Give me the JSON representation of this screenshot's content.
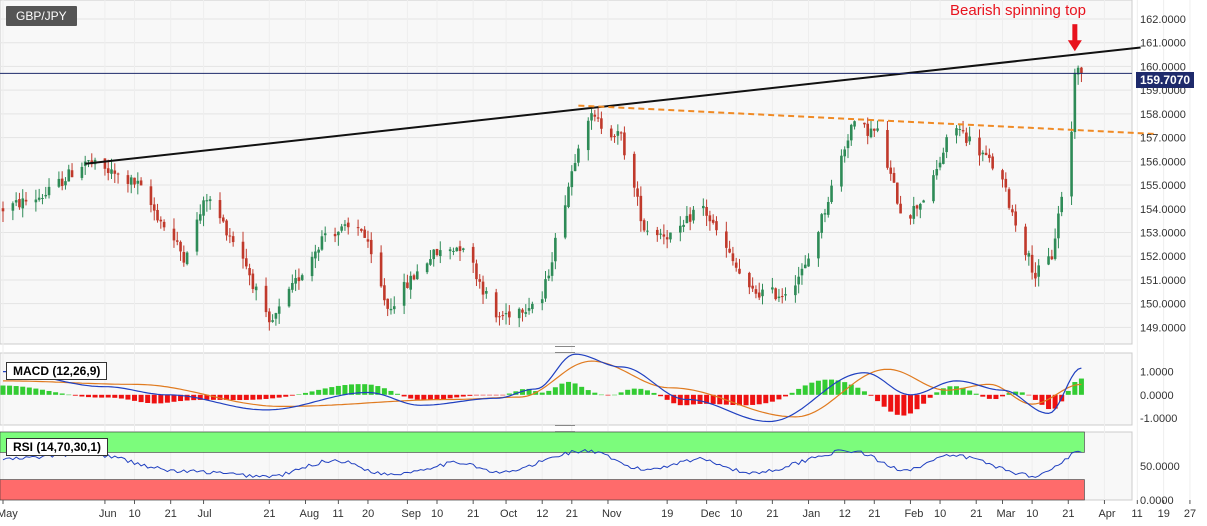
{
  "symbol_label": "GBP/JPY",
  "annotation": "Bearish spinning top",
  "last_price_label": "159.7070",
  "macd_label": "MACD (12,26,9)",
  "rsi_label": "RSI (14,70,30,1)",
  "colors": {
    "up_candle": "#2e8b57",
    "down_candle": "#c0392b",
    "trendline": "#111111",
    "resistance": "#f08a24",
    "macd_line": "#2040c0",
    "signal_line": "#e07b20",
    "hist_pos": "#33cc33",
    "hist_neg": "#ee1111",
    "rsi_line": "#2040c0",
    "overbought_zone": "#7cfc7c",
    "oversold_zone": "#ff6b6b",
    "annotation": "#e8121d",
    "price_tag": "#1e2a6b"
  },
  "chart_data": [
    {
      "type": "candlestick",
      "title": "GBP/JPY",
      "x_tick_labels": [
        "May",
        "Jun",
        "10",
        "21",
        "Jul",
        "21",
        "Aug",
        "11",
        "20",
        "Sep",
        "10",
        "21",
        "Oct",
        "12",
        "21",
        "Nov",
        "19",
        "Dec",
        "10",
        "21",
        "Jan",
        "12",
        "21",
        "Feb",
        "10",
        "21",
        "Mar",
        "10",
        "21",
        "Apr",
        "11",
        "19",
        "27"
      ],
      "y_tick_labels": [
        "149.0000",
        "150.0000",
        "151.0000",
        "152.0000",
        "153.0000",
        "154.0000",
        "155.0000",
        "156.0000",
        "157.0000",
        "158.0000",
        "159.0000",
        "160.0000",
        "161.0000",
        "162.0000"
      ],
      "ylim": [
        148.3,
        162.8
      ],
      "last_price": 159.707,
      "trendline": {
        "start": {
          "x": "2020-05-26",
          "y": 155.9
        },
        "end": {
          "x": "2021-04-12",
          "y": 160.8
        }
      },
      "resistance_line": {
        "start": {
          "x": "2020-10-23",
          "y": 158.35
        },
        "end": {
          "x": "2021-04-17",
          "y": 157.15
        }
      },
      "annotation": {
        "text": "Bearish spinning top",
        "x": "2021-03-23",
        "y": 160.6
      },
      "price_waypoints": [
        {
          "x": "2020-05-01",
          "y": 154.0
        },
        {
          "x": "2020-05-14",
          "y": 154.6
        },
        {
          "x": "2020-05-26",
          "y": 156.0
        },
        {
          "x": "2020-06-11",
          "y": 155.0
        },
        {
          "x": "2020-06-25",
          "y": 152.0
        },
        {
          "x": "2020-07-02",
          "y": 154.5
        },
        {
          "x": "2020-07-13",
          "y": 152.0
        },
        {
          "x": "2020-07-21",
          "y": 149.0
        },
        {
          "x": "2020-08-07",
          "y": 153.0
        },
        {
          "x": "2020-08-18",
          "y": 153.2
        },
        {
          "x": "2020-08-26",
          "y": 149.8
        },
        {
          "x": "2020-09-08",
          "y": 152.0
        },
        {
          "x": "2020-09-18",
          "y": 152.5
        },
        {
          "x": "2020-09-28",
          "y": 149.4
        },
        {
          "x": "2020-10-12",
          "y": 150.2
        },
        {
          "x": "2020-10-25",
          "y": 158.0
        },
        {
          "x": "2020-11-05",
          "y": 157.0
        },
        {
          "x": "2020-11-12",
          "y": 153.2
        },
        {
          "x": "2020-11-22",
          "y": 152.8
        },
        {
          "x": "2020-11-29",
          "y": 154.3
        },
        {
          "x": "2020-12-08",
          "y": 152.0
        },
        {
          "x": "2020-12-14",
          "y": 150.5
        },
        {
          "x": "2020-12-24",
          "y": 150.4
        },
        {
          "x": "2020-12-31",
          "y": 151.5
        },
        {
          "x": "2021-01-06",
          "y": 154.0
        },
        {
          "x": "2021-01-14",
          "y": 157.5
        },
        {
          "x": "2021-01-22",
          "y": 157.2
        },
        {
          "x": "2021-01-30",
          "y": 153.5
        },
        {
          "x": "2021-02-07",
          "y": 154.8
        },
        {
          "x": "2021-02-14",
          "y": 157.6
        },
        {
          "x": "2021-02-21",
          "y": 156.6
        },
        {
          "x": "2021-02-28",
          "y": 155.5
        },
        {
          "x": "2021-03-06",
          "y": 153.0
        },
        {
          "x": "2021-03-11",
          "y": 151.2
        },
        {
          "x": "2021-03-16",
          "y": 152.0
        },
        {
          "x": "2021-03-22",
          "y": 157.2
        },
        {
          "x": "2021-03-23",
          "y": 159.9
        },
        {
          "x": "2021-03-25",
          "y": 159.7
        }
      ]
    },
    {
      "type": "bar",
      "title": "MACD (12,26,9)",
      "y_tick_labels": [
        "-1.0000",
        "0.0000",
        "1.0000"
      ],
      "ylim": [
        -1.3,
        1.8
      ],
      "series": [
        {
          "name": "MACD",
          "points": [
            {
              "x": "2020-05-01",
              "y": 1.0
            },
            {
              "x": "2020-06-01",
              "y": 0.35
            },
            {
              "x": "2020-06-20",
              "y": 0.0
            },
            {
              "x": "2020-07-20",
              "y": -0.65
            },
            {
              "x": "2020-08-20",
              "y": 0.1
            },
            {
              "x": "2020-09-05",
              "y": -0.45
            },
            {
              "x": "2020-09-28",
              "y": -0.15
            },
            {
              "x": "2020-10-10",
              "y": 0.25
            },
            {
              "x": "2020-10-22",
              "y": 1.75
            },
            {
              "x": "2020-11-05",
              "y": 1.2
            },
            {
              "x": "2020-11-25",
              "y": -0.2
            },
            {
              "x": "2020-12-20",
              "y": -1.15
            },
            {
              "x": "2021-01-18",
              "y": 0.95
            },
            {
              "x": "2021-02-01",
              "y": 0.0
            },
            {
              "x": "2021-02-15",
              "y": 0.6
            },
            {
              "x": "2021-03-01",
              "y": 0.2
            },
            {
              "x": "2021-03-15",
              "y": -0.8
            },
            {
              "x": "2021-03-25",
              "y": 1.15
            }
          ]
        },
        {
          "name": "Signal",
          "points": [
            {
              "x": "2020-05-01",
              "y": 0.6
            },
            {
              "x": "2020-06-10",
              "y": 0.45
            },
            {
              "x": "2020-07-25",
              "y": -0.5
            },
            {
              "x": "2020-09-15",
              "y": -0.2
            },
            {
              "x": "2020-10-05",
              "y": -0.1
            },
            {
              "x": "2020-10-27",
              "y": 1.45
            },
            {
              "x": "2020-11-20",
              "y": 0.3
            },
            {
              "x": "2020-12-28",
              "y": -0.95
            },
            {
              "x": "2021-01-25",
              "y": 1.1
            },
            {
              "x": "2021-02-12",
              "y": 0.2
            },
            {
              "x": "2021-02-25",
              "y": 0.45
            },
            {
              "x": "2021-03-10",
              "y": -0.4
            },
            {
              "x": "2021-03-25",
              "y": 0.45
            }
          ]
        }
      ]
    },
    {
      "type": "line",
      "title": "RSI (14,70,30,1)",
      "y_tick_labels": [
        "0.0000",
        "50.0000"
      ],
      "ylim": [
        0,
        100
      ],
      "overbought": 70,
      "oversold": 30,
      "series": [
        {
          "name": "RSI",
          "points": [
            {
              "x": "2020-05-01",
              "y": 60
            },
            {
              "x": "2020-05-26",
              "y": 68
            },
            {
              "x": "2020-06-25",
              "y": 42
            },
            {
              "x": "2020-07-21",
              "y": 35
            },
            {
              "x": "2020-08-10",
              "y": 58
            },
            {
              "x": "2020-08-26",
              "y": 38
            },
            {
              "x": "2020-09-18",
              "y": 55
            },
            {
              "x": "2020-09-28",
              "y": 40
            },
            {
              "x": "2020-10-25",
              "y": 72
            },
            {
              "x": "2020-11-12",
              "y": 45
            },
            {
              "x": "2020-11-29",
              "y": 60
            },
            {
              "x": "2020-12-14",
              "y": 40
            },
            {
              "x": "2021-01-14",
              "y": 72
            },
            {
              "x": "2021-01-30",
              "y": 45
            },
            {
              "x": "2021-02-14",
              "y": 65
            },
            {
              "x": "2021-03-11",
              "y": 36
            },
            {
              "x": "2021-03-25",
              "y": 70
            }
          ]
        }
      ]
    }
  ]
}
